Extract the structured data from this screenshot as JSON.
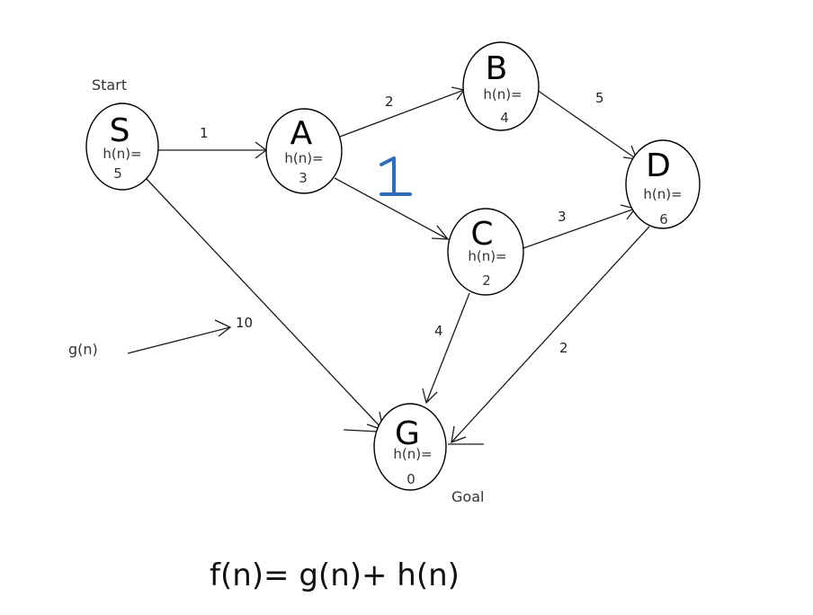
{
  "nodes": {
    "S": {
      "letter": "S",
      "h_label": "h(n)=",
      "h_value": "5"
    },
    "A": {
      "letter": "A",
      "h_label": "h(n)=",
      "h_value": "3"
    },
    "B": {
      "letter": "B",
      "h_label": "h(n)=",
      "h_value": "4"
    },
    "C": {
      "letter": "C",
      "h_label": "h(n)=",
      "h_value": "2"
    },
    "D": {
      "letter": "D",
      "h_label": "h(n)=",
      "h_value": "6"
    },
    "G": {
      "letter": "G",
      "h_label": "h(n)=",
      "h_value": "0"
    }
  },
  "edges": {
    "S_A": "1",
    "A_B": "2",
    "B_D": "5",
    "C_D": "3",
    "S_G": "10",
    "C_G": "4",
    "D_G": "2"
  },
  "labels": {
    "start": "Start",
    "goal": "Goal",
    "g_n": "g(n)"
  },
  "formula": "f(n)= g(n)+ h(n)",
  "annotation": {
    "handwritten_edge_weight": "1",
    "color": "#2a6fbf"
  }
}
